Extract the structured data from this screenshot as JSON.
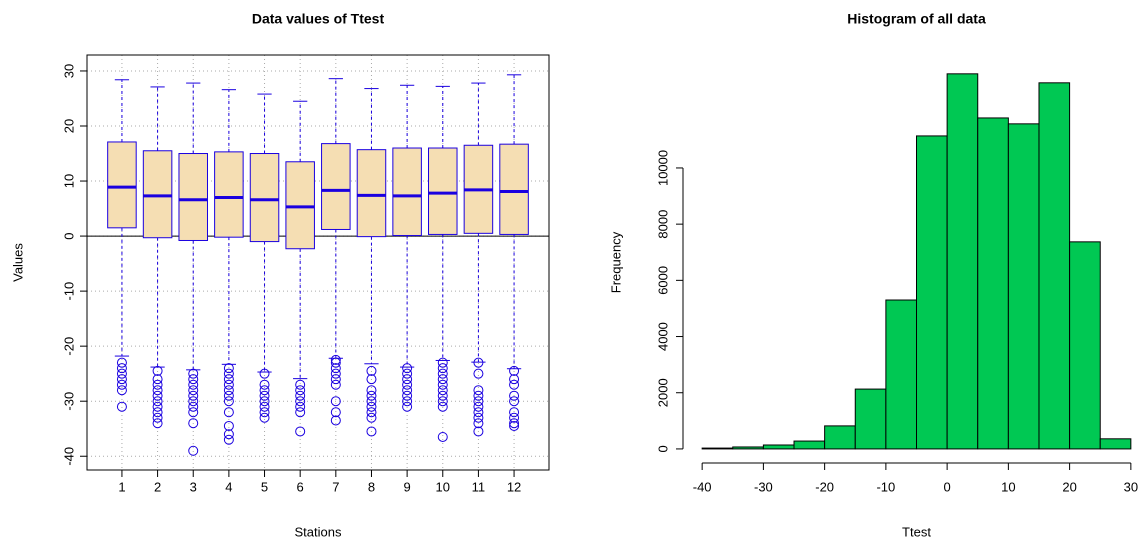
{
  "chart_data": [
    {
      "type": "box",
      "title": "Data values of Ttest",
      "x_label": "Stations",
      "y_label": "Values",
      "categories": [
        "1",
        "2",
        "3",
        "4",
        "5",
        "6",
        "7",
        "8",
        "9",
        "10",
        "11",
        "12"
      ],
      "boxes": [
        {
          "whislo": -21.8,
          "q1": 1.5,
          "med": 8.9,
          "q3": 17.1,
          "whishi": 28.4,
          "outliers": [
            -23,
            -24,
            -25,
            -26,
            -27,
            -28,
            -31
          ]
        },
        {
          "whislo": -23.8,
          "q1": -0.3,
          "med": 7.3,
          "q3": 15.5,
          "whishi": 27.1,
          "outliers": [
            -24.5,
            -26,
            -27,
            -28,
            -29,
            -30,
            -31,
            -32,
            -33,
            -34
          ]
        },
        {
          "whislo": -24.3,
          "q1": -0.8,
          "med": 6.6,
          "q3": 15.0,
          "whishi": 27.8,
          "outliers": [
            -25,
            -26,
            -27,
            -28,
            -29,
            -30,
            -31,
            -32,
            -34,
            -39
          ]
        },
        {
          "whislo": -23.3,
          "q1": -0.2,
          "med": 7.0,
          "q3": 15.3,
          "whishi": 26.6,
          "outliers": [
            -24,
            -25,
            -26,
            -27,
            -28,
            -29,
            -30,
            -32,
            -34.5,
            -36,
            -37
          ]
        },
        {
          "whislo": -24.7,
          "q1": -1.0,
          "med": 6.6,
          "q3": 15.0,
          "whishi": 25.8,
          "outliers": [
            -25,
            -27,
            -28,
            -29,
            -30,
            -31,
            -32,
            -33
          ]
        },
        {
          "whislo": -25.9,
          "q1": -2.3,
          "med": 5.3,
          "q3": 13.5,
          "whishi": 24.5,
          "outliers": [
            -27,
            -28,
            -29,
            -30,
            -31,
            -32,
            -35.5
          ]
        },
        {
          "whislo": -22.2,
          "q1": 1.2,
          "med": 8.3,
          "q3": 16.8,
          "whishi": 28.6,
          "outliers": [
            -22.5,
            -23,
            -24,
            -25,
            -26,
            -27,
            -30,
            -32,
            -33.5
          ]
        },
        {
          "whislo": -23.2,
          "q1": -0.1,
          "med": 7.4,
          "q3": 15.7,
          "whishi": 26.8,
          "outliers": [
            -24.5,
            -26,
            -28,
            -29,
            -30,
            -31,
            -32,
            -33,
            -35.5
          ]
        },
        {
          "whislo": -23.8,
          "q1": 0.1,
          "med": 7.3,
          "q3": 16.0,
          "whishi": 27.4,
          "outliers": [
            -24,
            -25,
            -26,
            -27,
            -28,
            -29,
            -30,
            -31
          ]
        },
        {
          "whislo": -22.6,
          "q1": 0.3,
          "med": 7.8,
          "q3": 16.0,
          "whishi": 27.2,
          "outliers": [
            -23,
            -24,
            -25,
            -26,
            -27,
            -28,
            -29,
            -30,
            -31,
            -36.5
          ]
        },
        {
          "whislo": -22.9,
          "q1": 0.5,
          "med": 8.4,
          "q3": 16.5,
          "whishi": 27.8,
          "outliers": [
            -23,
            -25,
            -28,
            -29,
            -30,
            -31,
            -32,
            -33,
            -34,
            -35.5
          ]
        },
        {
          "whislo": -24.1,
          "q1": 0.3,
          "med": 8.1,
          "q3": 16.7,
          "whishi": 29.3,
          "outliers": [
            -24.5,
            -26,
            -27,
            -29,
            -30,
            -32,
            -33,
            -34,
            -34.5
          ]
        }
      ],
      "fill": "#f5deb3",
      "color": "#1a00e0",
      "ylim": [
        -42.5,
        32.9
      ],
      "yticks": [
        -40,
        -30,
        -20,
        -10,
        0,
        10,
        20,
        30
      ],
      "grid": true,
      "hline": 0
    },
    {
      "type": "histogram",
      "title": "Histogram of all data",
      "x_label": "Ttest",
      "y_label": "Frequency",
      "bins": [
        -40,
        -35,
        -30,
        -25,
        -20,
        -15,
        -10,
        -5,
        0,
        5,
        10,
        15,
        20,
        25,
        30
      ],
      "values": [
        30,
        70,
        140,
        280,
        820,
        2130,
        5300,
        11140,
        13350,
        11780,
        11570,
        13030,
        7370,
        360
      ],
      "color": "#00c853",
      "xlim": [
        -42.8,
        32.8
      ],
      "ylim": [
        -750,
        14020
      ],
      "xticks": [
        -40,
        -30,
        -20,
        -10,
        0,
        10,
        20,
        30
      ],
      "yticks": [
        0,
        2000,
        4000,
        6000,
        8000,
        10000
      ]
    }
  ]
}
